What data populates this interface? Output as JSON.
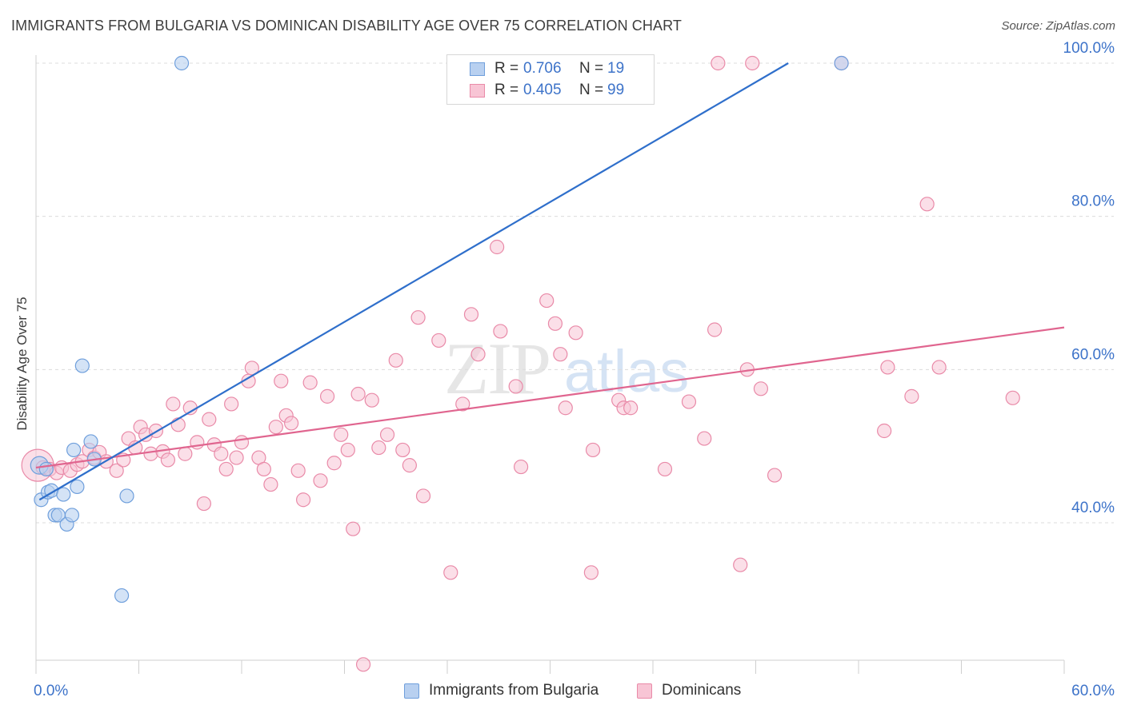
{
  "title": "IMMIGRANTS FROM BULGARIA VS DOMINICAN DISABILITY AGE OVER 75 CORRELATION CHART",
  "source": "Source: ZipAtlas.com",
  "watermark": {
    "zip": "ZIP",
    "atlas": "atlas"
  },
  "legend_top": {
    "rows": [
      {
        "r_label": "R =",
        "r_value": "0.706",
        "n_label": "N =",
        "n_value": "19"
      },
      {
        "r_label": "R =",
        "r_value": "0.405",
        "n_label": "N =",
        "n_value": "99"
      }
    ]
  },
  "legend_bottom": [
    "Immigrants from Bulgaria",
    "Dominicans"
  ],
  "colors": {
    "bulgaria_fill": "#b8d0f0",
    "bulgaria_stroke": "#6f9fdc",
    "bulgaria_line": "#2f6fcb",
    "dominican_fill": "#f8c5d5",
    "dominican_stroke": "#e98aa8",
    "dominican_line": "#e0658f",
    "tick_label": "#3d73c9",
    "grid": "#dcdcdc"
  },
  "chart_data": {
    "type": "scatter",
    "title": "IMMIGRANTS FROM BULGARIA VS DOMINICAN DISABILITY AGE OVER 75 CORRELATION CHART",
    "xlabel": "",
    "ylabel": "Disability Age Over 75",
    "xlim": [
      0,
      60
    ],
    "ylim": [
      20.5,
      102
    ],
    "x_tick_labels": [
      "0.0%",
      "60.0%"
    ],
    "y_ticks": [
      40,
      60,
      80,
      100
    ],
    "y_tick_labels": [
      "40.0%",
      "60.0%",
      "80.0%",
      "100.0%"
    ],
    "grid": "horizontal-dashed",
    "legend_position": "top-center",
    "series": [
      {
        "name": "Immigrants from Bulgaria",
        "R": 0.706,
        "N": 19,
        "trend": {
          "x": [
            0.2,
            43.9
          ],
          "y": [
            43.0,
            100.0
          ]
        },
        "points": [
          [
            0.2,
            47.5
          ],
          [
            0.3,
            43.0
          ],
          [
            0.6,
            47.0
          ],
          [
            0.7,
            44.0
          ],
          [
            0.9,
            44.2
          ],
          [
            1.1,
            41.0
          ],
          [
            1.3,
            41.0
          ],
          [
            1.6,
            43.7
          ],
          [
            1.8,
            39.8
          ],
          [
            2.1,
            41.0
          ],
          [
            2.2,
            49.5
          ],
          [
            2.4,
            44.7
          ],
          [
            2.7,
            60.5
          ],
          [
            3.2,
            50.6
          ],
          [
            3.4,
            48.3
          ],
          [
            5.0,
            30.5
          ],
          [
            5.3,
            43.5
          ],
          [
            8.5,
            100.0
          ],
          [
            47.0,
            100.0
          ]
        ]
      },
      {
        "name": "Dominicans",
        "R": 0.405,
        "N": 99,
        "trend": {
          "x": [
            0.0,
            60.0
          ],
          "y": [
            47.2,
            65.5
          ]
        },
        "points": [
          [
            0.1,
            47.5
          ],
          [
            0.4,
            47.2
          ],
          [
            0.8,
            47.0
          ],
          [
            1.2,
            46.5
          ],
          [
            1.5,
            47.2
          ],
          [
            2.0,
            46.8
          ],
          [
            2.4,
            47.6
          ],
          [
            2.7,
            48.0
          ],
          [
            3.1,
            49.5
          ],
          [
            3.4,
            48.5
          ],
          [
            3.7,
            49.2
          ],
          [
            4.1,
            48.0
          ],
          [
            4.7,
            46.8
          ],
          [
            5.1,
            48.2
          ],
          [
            5.4,
            51.0
          ],
          [
            5.8,
            49.8
          ],
          [
            6.1,
            52.5
          ],
          [
            6.4,
            51.5
          ],
          [
            6.7,
            49.0
          ],
          [
            7.0,
            52.0
          ],
          [
            7.4,
            49.3
          ],
          [
            7.7,
            48.2
          ],
          [
            8.0,
            55.5
          ],
          [
            8.3,
            52.8
          ],
          [
            8.7,
            49.0
          ],
          [
            9.0,
            55.0
          ],
          [
            9.4,
            50.5
          ],
          [
            9.8,
            42.5
          ],
          [
            10.1,
            53.5
          ],
          [
            10.4,
            50.2
          ],
          [
            10.8,
            49.0
          ],
          [
            11.1,
            47.0
          ],
          [
            11.4,
            55.5
          ],
          [
            11.7,
            48.5
          ],
          [
            12.0,
            50.5
          ],
          [
            12.4,
            58.5
          ],
          [
            12.6,
            60.2
          ],
          [
            13.0,
            48.5
          ],
          [
            13.3,
            47.0
          ],
          [
            13.7,
            45.0
          ],
          [
            14.0,
            52.5
          ],
          [
            14.3,
            58.5
          ],
          [
            14.6,
            54.0
          ],
          [
            14.9,
            53.0
          ],
          [
            15.3,
            46.8
          ],
          [
            15.6,
            43.0
          ],
          [
            16.0,
            58.3
          ],
          [
            16.6,
            45.5
          ],
          [
            17.0,
            56.5
          ],
          [
            17.4,
            47.8
          ],
          [
            17.8,
            51.5
          ],
          [
            18.2,
            49.5
          ],
          [
            18.5,
            39.2
          ],
          [
            18.8,
            56.8
          ],
          [
            19.1,
            21.5
          ],
          [
            19.6,
            56.0
          ],
          [
            20.0,
            49.8
          ],
          [
            20.5,
            51.5
          ],
          [
            21.0,
            61.2
          ],
          [
            21.4,
            49.5
          ],
          [
            21.8,
            47.5
          ],
          [
            22.3,
            66.8
          ],
          [
            22.6,
            43.5
          ],
          [
            23.5,
            63.8
          ],
          [
            24.2,
            33.5
          ],
          [
            24.9,
            55.5
          ],
          [
            25.4,
            67.2
          ],
          [
            25.8,
            62.0
          ],
          [
            26.9,
            76.0
          ],
          [
            27.1,
            65.0
          ],
          [
            28.0,
            57.8
          ],
          [
            28.3,
            47.3
          ],
          [
            29.8,
            69.0
          ],
          [
            30.3,
            66.0
          ],
          [
            30.6,
            62.0
          ],
          [
            30.9,
            55.0
          ],
          [
            31.5,
            64.8
          ],
          [
            32.4,
            33.5
          ],
          [
            32.5,
            49.5
          ],
          [
            34.0,
            56.0
          ],
          [
            34.3,
            55.0
          ],
          [
            34.7,
            55.0
          ],
          [
            36.7,
            47.0
          ],
          [
            38.1,
            55.8
          ],
          [
            39.0,
            51.0
          ],
          [
            39.6,
            65.2
          ],
          [
            41.1,
            34.5
          ],
          [
            41.5,
            60.0
          ],
          [
            42.3,
            57.5
          ],
          [
            43.1,
            46.2
          ],
          [
            47.0,
            100.0
          ],
          [
            49.5,
            52.0
          ],
          [
            49.7,
            60.3
          ],
          [
            51.1,
            56.5
          ],
          [
            52.0,
            81.6
          ],
          [
            52.7,
            60.3
          ],
          [
            57.0,
            56.3
          ],
          [
            39.8,
            100.0
          ],
          [
            41.8,
            100.0
          ]
        ]
      }
    ]
  }
}
